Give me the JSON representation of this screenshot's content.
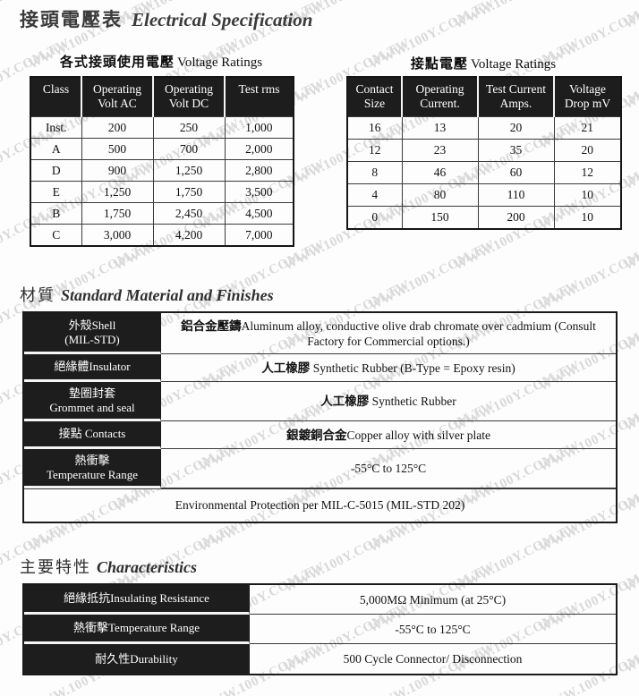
{
  "page": {
    "title_zh": "接頭電壓表",
    "title_en": "Electrical Specification"
  },
  "watermark": {
    "text": "WWW.100Y.COM.TW"
  },
  "voltage_table": {
    "title_zh": "各式接頭使用電壓",
    "title_en": "Voltage Ratings",
    "headers": [
      "Class",
      "Operating\nVolt AC",
      "Operating\nVolt DC",
      "Test rms"
    ],
    "rows": [
      [
        "Inst.",
        "200",
        "250",
        "1,000"
      ],
      [
        "A",
        "500",
        "700",
        "2,000"
      ],
      [
        "D",
        "900",
        "1,250",
        "2,800"
      ],
      [
        "E",
        "1,250",
        "1,750",
        "3,500"
      ],
      [
        "B",
        "1,750",
        "2,450",
        "4,500"
      ],
      [
        "C",
        "3,000",
        "4,200",
        "7,000"
      ]
    ]
  },
  "contact_table": {
    "title_zh": "接點電壓",
    "title_en": "Voltage Ratings",
    "headers": [
      "Contact\nSize",
      "Operating\nCurrent.",
      "Test Current\nAmps.",
      "Voltage\nDrop mV"
    ],
    "rows": [
      [
        "16",
        "13",
        "20",
        "21"
      ],
      [
        "12",
        "23",
        "35",
        "20"
      ],
      [
        "8",
        "46",
        "60",
        "12"
      ],
      [
        "4",
        "80",
        "110",
        "10"
      ],
      [
        "0",
        "150",
        "200",
        "10"
      ]
    ]
  },
  "material": {
    "title_zh": "材質",
    "title_en": "Standard Material and Finishes",
    "rows": [
      {
        "label": "外殼Shell\n(MIL-STD)",
        "zh": "鋁合金壓鑄",
        "en": "Aluminum alloy, conductive olive drab chromate over cadmium (Consult Factory for Commercial options.)"
      },
      {
        "label": "絕緣體Insulator",
        "zh": "人工橡膠 ",
        "en": "Synthetic Rubber  (B-Type = Epoxy resin)"
      },
      {
        "label": "墊圈封套\nGrommet and seal",
        "zh": "人工橡膠 ",
        "en": "Synthetic Rubber"
      },
      {
        "label": "接點 Contacts",
        "zh": "銀鍍銅合金",
        "en": "Copper alloy with silver plate"
      },
      {
        "label": "熱衝擊\nTemperature Range",
        "zh": "",
        "en": "-55°C  to  125°C"
      }
    ],
    "footer": "Environmental Protection per MIL-C-5015 (MIL-STD 202)"
  },
  "characteristics": {
    "title_zh": "主要特性",
    "title_en": "Characteristics",
    "rows": [
      {
        "label": "絕緣抵抗Insulating Resistance",
        "value": "5,000MΩ Minimum (at 25°C)"
      },
      {
        "label": "熱衝擊Temperature Range",
        "value": "-55°C  to  125°C"
      },
      {
        "label": "耐久性Durability",
        "value": "500 Cycle Connector/ Disconnection"
      }
    ]
  }
}
